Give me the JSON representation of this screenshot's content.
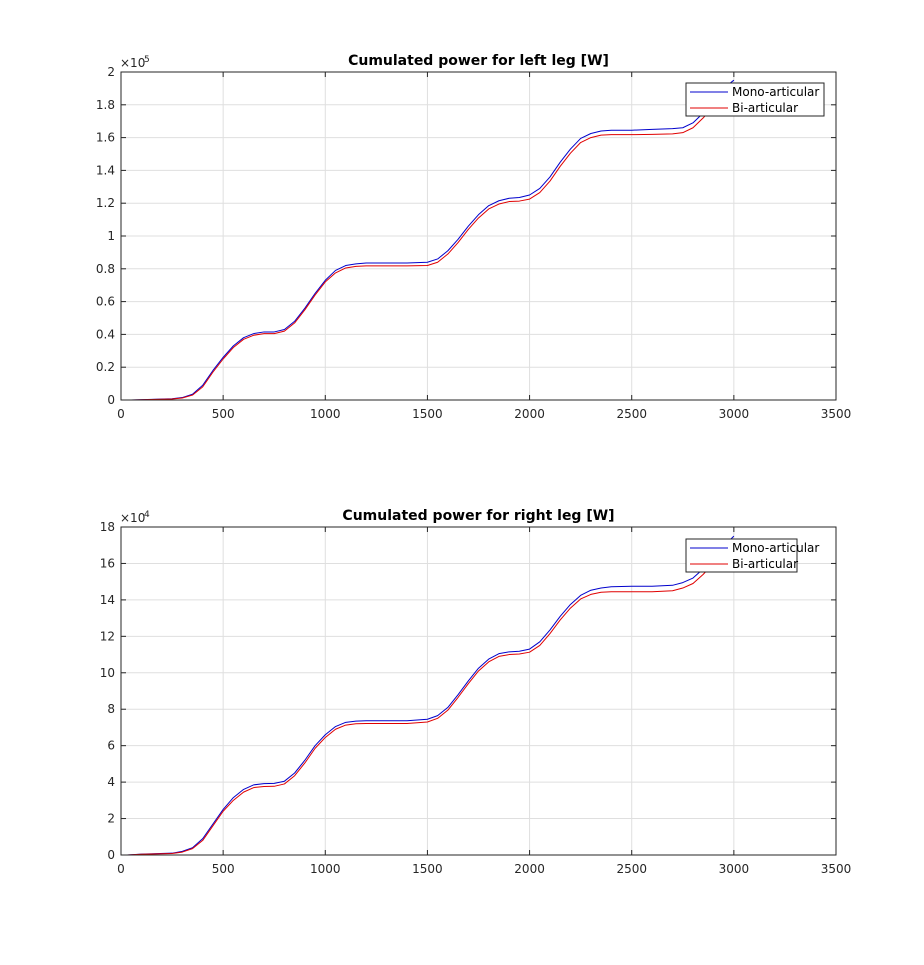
{
  "chart_data": [
    {
      "type": "line",
      "title": "Cumulated power for left leg [W]",
      "xlabel": "",
      "ylabel": "",
      "xlim": [
        0,
        3500
      ],
      "ylim": [
        0,
        200000
      ],
      "grid": true,
      "legend_position": "top-right",
      "x_ticks": [
        0,
        500,
        1000,
        1500,
        2000,
        2500,
        3000,
        3500
      ],
      "y_ticks": [
        0,
        20000,
        40000,
        60000,
        80000,
        100000,
        120000,
        140000,
        160000,
        180000,
        200000
      ],
      "y_tick_labels": [
        "0",
        "0.2",
        "0.4",
        "0.6",
        "0.8",
        "1",
        "1.2",
        "1.4",
        "1.6",
        "1.8",
        "2"
      ],
      "y_multiplier": {
        "base": "×10",
        "exponent": "5"
      },
      "series": [
        {
          "name": "Mono-articular",
          "color": "#0000cc",
          "points": [
            [
              50,
              0
            ],
            [
              250,
              800
            ],
            [
              300,
              1500
            ],
            [
              350,
              3500
            ],
            [
              400,
              9000
            ],
            [
              450,
              18000
            ],
            [
              500,
              26000
            ],
            [
              550,
              33000
            ],
            [
              600,
              38000
            ],
            [
              650,
              40500
            ],
            [
              700,
              41500
            ],
            [
              750,
              41500
            ],
            [
              800,
              43000
            ],
            [
              850,
              48000
            ],
            [
              900,
              56000
            ],
            [
              950,
              65000
            ],
            [
              1000,
              73000
            ],
            [
              1050,
              79000
            ],
            [
              1100,
              82000
            ],
            [
              1150,
              83000
            ],
            [
              1200,
              83500
            ],
            [
              1300,
              83500
            ],
            [
              1400,
              83500
            ],
            [
              1500,
              84000
            ],
            [
              1550,
              86000
            ],
            [
              1600,
              91000
            ],
            [
              1650,
              98000
            ],
            [
              1700,
              106000
            ],
            [
              1750,
              113000
            ],
            [
              1800,
              118500
            ],
            [
              1850,
              121500
            ],
            [
              1900,
              123000
            ],
            [
              1950,
              123500
            ],
            [
              2000,
              125000
            ],
            [
              2050,
              129000
            ],
            [
              2100,
              136000
            ],
            [
              2150,
              145000
            ],
            [
              2200,
              153000
            ],
            [
              2250,
              159500
            ],
            [
              2300,
              162500
            ],
            [
              2350,
              164000
            ],
            [
              2400,
              164500
            ],
            [
              2500,
              164500
            ],
            [
              2600,
              165000
            ],
            [
              2700,
              165500
            ],
            [
              2750,
              166000
            ],
            [
              2800,
              169000
            ],
            [
              2850,
              175000
            ],
            [
              2900,
              182000
            ],
            [
              2950,
              190000
            ],
            [
              3000,
              195000
            ]
          ]
        },
        {
          "name": "Bi-articular",
          "color": "#e00000",
          "points": [
            [
              50,
              0
            ],
            [
              250,
              600
            ],
            [
              300,
              1200
            ],
            [
              350,
              3000
            ],
            [
              400,
              8000
            ],
            [
              450,
              17000
            ],
            [
              500,
              25000
            ],
            [
              550,
              32000
            ],
            [
              600,
              37000
            ],
            [
              650,
              39500
            ],
            [
              700,
              40500
            ],
            [
              750,
              40500
            ],
            [
              800,
              42000
            ],
            [
              850,
              47000
            ],
            [
              900,
              55000
            ],
            [
              950,
              64000
            ],
            [
              1000,
              72000
            ],
            [
              1050,
              77500
            ],
            [
              1100,
              80500
            ],
            [
              1150,
              81500
            ],
            [
              1200,
              81800
            ],
            [
              1300,
              81800
            ],
            [
              1400,
              81800
            ],
            [
              1500,
              82000
            ],
            [
              1550,
              84000
            ],
            [
              1600,
              89000
            ],
            [
              1650,
              96000
            ],
            [
              1700,
              104000
            ],
            [
              1750,
              111000
            ],
            [
              1800,
              116500
            ],
            [
              1850,
              119500
            ],
            [
              1900,
              121000
            ],
            [
              1950,
              121300
            ],
            [
              2000,
              122500
            ],
            [
              2050,
              126500
            ],
            [
              2100,
              133500
            ],
            [
              2150,
              142500
            ],
            [
              2200,
              150500
            ],
            [
              2250,
              157000
            ],
            [
              2300,
              160000
            ],
            [
              2350,
              161500
            ],
            [
              2400,
              161800
            ],
            [
              2500,
              161800
            ],
            [
              2600,
              162000
            ],
            [
              2700,
              162300
            ],
            [
              2750,
              163000
            ],
            [
              2800,
              166000
            ],
            [
              2850,
              172000
            ],
            [
              2900,
              179000
            ],
            [
              2950,
              187000
            ],
            [
              3000,
              192000
            ]
          ]
        }
      ]
    },
    {
      "type": "line",
      "title": "Cumulated power for right leg [W]",
      "xlabel": "",
      "ylabel": "",
      "xlim": [
        0,
        3500
      ],
      "ylim": [
        0,
        180000
      ],
      "grid": true,
      "legend_position": "top-right",
      "x_ticks": [
        0,
        500,
        1000,
        1500,
        2000,
        2500,
        3000,
        3500
      ],
      "y_ticks": [
        0,
        20000,
        40000,
        60000,
        80000,
        100000,
        120000,
        140000,
        160000,
        180000
      ],
      "y_tick_labels": [
        "0",
        "2",
        "4",
        "6",
        "8",
        "10",
        "12",
        "14",
        "16",
        "18"
      ],
      "y_multiplier": {
        "base": "×10",
        "exponent": "4"
      },
      "series": [
        {
          "name": "Mono-articular",
          "color": "#0000cc",
          "points": [
            [
              30,
              0
            ],
            [
              100,
              500
            ],
            [
              250,
              1000
            ],
            [
              300,
              2000
            ],
            [
              350,
              4000
            ],
            [
              400,
              9000
            ],
            [
              450,
              17000
            ],
            [
              500,
              25000
            ],
            [
              550,
              31500
            ],
            [
              600,
              36000
            ],
            [
              650,
              38500
            ],
            [
              700,
              39200
            ],
            [
              750,
              39300
            ],
            [
              800,
              40500
            ],
            [
              850,
              45000
            ],
            [
              900,
              52000
            ],
            [
              950,
              60000
            ],
            [
              1000,
              66000
            ],
            [
              1050,
              70500
            ],
            [
              1100,
              72800
            ],
            [
              1150,
              73500
            ],
            [
              1200,
              73700
            ],
            [
              1300,
              73700
            ],
            [
              1400,
              73700
            ],
            [
              1500,
              74500
            ],
            [
              1550,
              76500
            ],
            [
              1600,
              81000
            ],
            [
              1650,
              88000
            ],
            [
              1700,
              95500
            ],
            [
              1750,
              102500
            ],
            [
              1800,
              107500
            ],
            [
              1850,
              110500
            ],
            [
              1900,
              111500
            ],
            [
              1950,
              111800
            ],
            [
              2000,
              113000
            ],
            [
              2050,
              117000
            ],
            [
              2100,
              123500
            ],
            [
              2150,
              131000
            ],
            [
              2200,
              137500
            ],
            [
              2250,
              142500
            ],
            [
              2300,
              145300
            ],
            [
              2350,
              146500
            ],
            [
              2400,
              147200
            ],
            [
              2500,
              147500
            ],
            [
              2600,
              147500
            ],
            [
              2700,
              148000
            ],
            [
              2750,
              149500
            ],
            [
              2800,
              152000
            ],
            [
              2850,
              157000
            ],
            [
              2900,
              163000
            ],
            [
              2950,
              169500
            ],
            [
              3000,
              175000
            ]
          ]
        },
        {
          "name": "Bi-articular",
          "color": "#e00000",
          "points": [
            [
              30,
              0
            ],
            [
              100,
              400
            ],
            [
              250,
              800
            ],
            [
              300,
              1600
            ],
            [
              350,
              3500
            ],
            [
              400,
              8000
            ],
            [
              450,
              16000
            ],
            [
              500,
              24000
            ],
            [
              550,
              30000
            ],
            [
              600,
              34500
            ],
            [
              650,
              37000
            ],
            [
              700,
              37600
            ],
            [
              750,
              37700
            ],
            [
              800,
              39000
            ],
            [
              850,
              43500
            ],
            [
              900,
              50500
            ],
            [
              950,
              58500
            ],
            [
              1000,
              64500
            ],
            [
              1050,
              69000
            ],
            [
              1100,
              71300
            ],
            [
              1150,
              72000
            ],
            [
              1200,
              72200
            ],
            [
              1300,
              72200
            ],
            [
              1400,
              72200
            ],
            [
              1500,
              73000
            ],
            [
              1550,
              75000
            ],
            [
              1600,
              79500
            ],
            [
              1650,
              86500
            ],
            [
              1700,
              94000
            ],
            [
              1750,
              101000
            ],
            [
              1800,
              106000
            ],
            [
              1850,
              109000
            ],
            [
              1900,
              110000
            ],
            [
              1950,
              110300
            ],
            [
              2000,
              111300
            ],
            [
              2050,
              115000
            ],
            [
              2100,
              121500
            ],
            [
              2150,
              129000
            ],
            [
              2200,
              135500
            ],
            [
              2250,
              140500
            ],
            [
              2300,
              143000
            ],
            [
              2350,
              144200
            ],
            [
              2400,
              144500
            ],
            [
              2500,
              144500
            ],
            [
              2600,
              144500
            ],
            [
              2700,
              145000
            ],
            [
              2750,
              146500
            ],
            [
              2800,
              149000
            ],
            [
              2850,
              154000
            ],
            [
              2900,
              160000
            ],
            [
              2950,
              166500
            ],
            [
              3000,
              172000
            ]
          ]
        }
      ]
    }
  ]
}
